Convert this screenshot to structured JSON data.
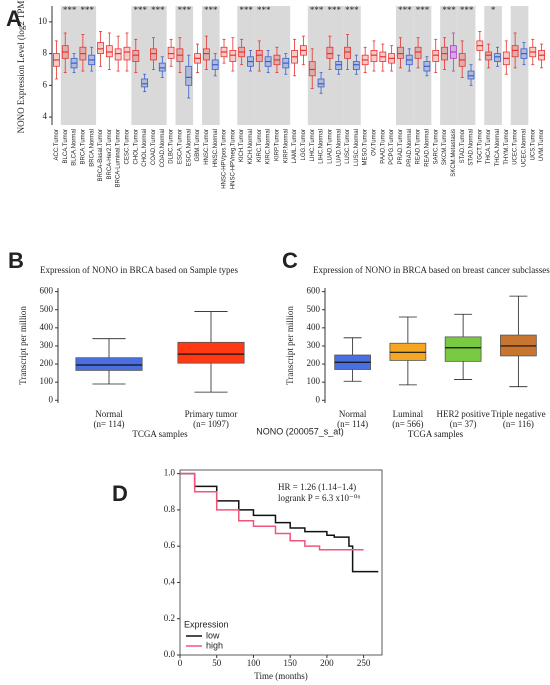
{
  "chart_data": [
    {
      "type": "box",
      "panel": "A",
      "y_label": "NONO Expression Level (log2 TPM)",
      "categories": [
        "ACC.Tumor",
        "BLCA.Tumor",
        "BLCA.Normal",
        "BRCA.Tumor",
        "BRCA.Normal",
        "BRCA-Basal.Tumor",
        "BRCA-Her2.Tumor",
        "BRCA-Luminal.Tumor",
        "CESC.Tumor",
        "CHOL.Tumor",
        "CHOL.Normal",
        "COAD.Tumor",
        "COAD.Normal",
        "DLBC.Tumor",
        "ESCA.Tumor",
        "ESCA.Normal",
        "GBM.Tumor",
        "HNSC.Tumor",
        "HNSC.Normal",
        "HNSC-HPVpos.Tumor",
        "HNSC-HPVneg.Tumor",
        "KICH.Tumor",
        "KICH.Normal",
        "KIRC.Tumor",
        "KIRC.Normal",
        "KIRP.Tumor",
        "KIRP.Normal",
        "LAML.Tumor",
        "LGG.Tumor",
        "LIHC.Tumor",
        "LIHC.Normal",
        "LUAD.Tumor",
        "LUAD.Normal",
        "LUSC.Tumor",
        "LUSC.Normal",
        "MESO.Tumor",
        "OV.Tumor",
        "PAAD.Tumor",
        "PCPG.Tumor",
        "PRAD.Tumor",
        "PRAD.Normal",
        "READ.Tumor",
        "READ.Normal",
        "SARC.Tumor",
        "SKCM.Tumor",
        "SKCM.Metastasis",
        "STAD.Tumor",
        "STAD.Normal",
        "TGCT.Tumor",
        "THCA.Tumor",
        "THCA.Normal",
        "THYM.Tumor",
        "UCEC.Tumor",
        "UCEC.Normal",
        "UCS.Tumor",
        "UVM.Tumor"
      ],
      "medians": [
        7.6,
        8.1,
        7.4,
        8.0,
        7.6,
        8.3,
        8.1,
        8.0,
        8.1,
        7.9,
        6.1,
        8.0,
        7.1,
        8.0,
        7.9,
        6.5,
        7.7,
        8.0,
        7.3,
        8.1,
        7.9,
        8.1,
        7.5,
        7.9,
        7.5,
        7.6,
        7.4,
        7.8,
        8.2,
        7.0,
        6.1,
        8.0,
        7.3,
        8.1,
        7.3,
        7.6,
        7.9,
        7.8,
        7.7,
        8.0,
        7.6,
        8.1,
        7.2,
        7.9,
        8.0,
        8.1,
        7.6,
        6.6,
        8.5,
        7.9,
        7.8,
        7.7,
        8.2,
        8.0,
        8.1,
        7.9
      ],
      "q1": [
        7.2,
        7.7,
        7.1,
        7.6,
        7.3,
        8.0,
        7.8,
        7.6,
        7.6,
        7.5,
        5.9,
        7.6,
        6.9,
        7.7,
        7.5,
        6.0,
        7.4,
        7.6,
        7.0,
        7.8,
        7.5,
        7.8,
        7.2,
        7.5,
        7.2,
        7.3,
        7.1,
        7.4,
        7.9,
        6.6,
        5.9,
        7.7,
        7.0,
        7.7,
        7.0,
        7.3,
        7.5,
        7.5,
        7.4,
        7.7,
        7.3,
        7.7,
        6.9,
        7.5,
        7.6,
        7.7,
        7.2,
        6.4,
        8.2,
        7.6,
        7.5,
        7.3,
        7.8,
        7.7,
        7.8,
        7.6
      ],
      "q3": [
        8.0,
        8.5,
        7.7,
        8.4,
        7.9,
        8.7,
        8.5,
        8.3,
        8.4,
        8.2,
        6.4,
        8.3,
        7.4,
        8.4,
        8.3,
        7.2,
        8.0,
        8.3,
        7.6,
        8.4,
        8.2,
        8.4,
        7.8,
        8.2,
        7.8,
        7.9,
        7.7,
        8.2,
        8.5,
        7.5,
        6.4,
        8.4,
        7.5,
        8.4,
        7.5,
        7.9,
        8.2,
        8.1,
        8.0,
        8.4,
        7.9,
        8.4,
        7.5,
        8.2,
        8.4,
        8.5,
        8.0,
        6.9,
        8.8,
        8.1,
        8.0,
        8.1,
        8.5,
        8.3,
        8.4,
        8.2
      ],
      "whisker_low": [
        6.4,
        6.8,
        6.8,
        6.9,
        6.9,
        7.2,
        7.0,
        6.9,
        6.9,
        6.8,
        5.6,
        7.0,
        6.5,
        7.2,
        6.8,
        5.2,
        6.8,
        7.0,
        6.6,
        7.4,
        6.9,
        7.3,
        6.9,
        6.9,
        6.8,
        6.8,
        6.7,
        6.6,
        7.3,
        5.8,
        5.5,
        7.0,
        6.7,
        7.0,
        6.7,
        6.8,
        6.9,
        6.9,
        6.9,
        7.1,
        6.9,
        7.1,
        6.6,
        6.8,
        7.0,
        6.9,
        6.5,
        6.0,
        7.6,
        7.1,
        7.2,
        6.7,
        7.1,
        7.3,
        7.3,
        7.1
      ],
      "whisker_high": [
        8.8,
        9.3,
        8.0,
        9.2,
        8.4,
        9.4,
        9.3,
        9.1,
        9.3,
        8.9,
        6.7,
        9.0,
        7.8,
        8.9,
        9.0,
        7.9,
        8.6,
        9.1,
        8.0,
        8.9,
        9.0,
        8.9,
        8.2,
        8.8,
        8.2,
        8.4,
        8.0,
        8.9,
        9.1,
        8.3,
        6.8,
        9.1,
        7.9,
        9.2,
        7.9,
        8.4,
        8.8,
        8.6,
        8.5,
        9.0,
        8.3,
        9.0,
        7.8,
        8.9,
        9.0,
        9.3,
        8.8,
        7.3,
        9.4,
        8.6,
        8.4,
        8.8,
        9.3,
        8.7,
        8.9,
        8.6
      ],
      "significance": [
        null,
        "***",
        null,
        "***",
        null,
        null,
        null,
        null,
        null,
        "***",
        null,
        "***",
        null,
        null,
        "***",
        null,
        null,
        "***",
        null,
        null,
        null,
        "***",
        null,
        "***",
        null,
        null,
        null,
        null,
        null,
        "***",
        null,
        "***",
        null,
        "***",
        null,
        null,
        null,
        null,
        null,
        "***",
        null,
        "***",
        null,
        null,
        "***",
        null,
        "***",
        null,
        null,
        "*",
        null,
        null,
        null,
        null,
        null,
        null
      ],
      "box_colors": {
        "Tumor": "#e8322e",
        "Normal": "#3a5fd0",
        "Metastasis": "#b43ad0"
      },
      "ylim": [
        3.5,
        11
      ],
      "yticks": [
        4,
        6,
        8,
        10
      ]
    },
    {
      "type": "box",
      "panel": "B",
      "title": "Expression of NONO in BRCA based on Sample types",
      "y_label": "Transcript per million",
      "x_label": "TCGA samples",
      "categories": [
        "Normal",
        "Primary tumor"
      ],
      "n_labels": [
        "(n= 114)",
        "(n= 1097)"
      ],
      "medians": [
        195,
        255
      ],
      "q1": [
        165,
        205
      ],
      "q3": [
        235,
        320
      ],
      "whisker_low": [
        90,
        45
      ],
      "whisker_high": [
        340,
        490
      ],
      "colors": [
        "#4a6fe3",
        "#ff3a12"
      ],
      "ylim": [
        -15,
        620
      ],
      "yticks": [
        0,
        100,
        200,
        300,
        400,
        500,
        600
      ]
    },
    {
      "type": "box",
      "panel": "C",
      "title": "Expression of NONO in BRCA based on breast cancer subclasses",
      "y_label": "Transcript per million",
      "x_label": "TCGA samples",
      "categories": [
        "Normal",
        "Luminal",
        "HER2 positive",
        "Triple negative"
      ],
      "n_labels": [
        "(n= 114)",
        "(n= 566)",
        "(n= 37)",
        "(n= 116)"
      ],
      "medians": [
        210,
        265,
        290,
        300
      ],
      "q1": [
        170,
        220,
        215,
        245
      ],
      "q3": [
        250,
        315,
        350,
        360
      ],
      "whisker_low": [
        105,
        85,
        115,
        75
      ],
      "whisker_high": [
        345,
        460,
        475,
        575
      ],
      "colors": [
        "#4a6fe3",
        "#f5a623",
        "#7ac943",
        "#c87530"
      ],
      "ylim": [
        -15,
        620
      ],
      "yticks": [
        0,
        100,
        200,
        300,
        400,
        500,
        600
      ]
    },
    {
      "type": "line",
      "panel": "D",
      "title": "NONO (200057_s_at)",
      "annotations": [
        "HR = 1.26 (1.14−1.4)",
        "logrank P = 6.3 x10⁻⁰⁶"
      ],
      "x_label": "Time (months)",
      "legend_title": "Expression",
      "step": true,
      "series": [
        {
          "name": "low",
          "color": "#111111",
          "x": [
            0,
            20,
            50,
            80,
            100,
            130,
            150,
            170,
            200,
            210,
            230,
            235,
            270
          ],
          "values": [
            1,
            0.93,
            0.85,
            0.8,
            0.77,
            0.73,
            0.7,
            0.68,
            0.66,
            0.65,
            0.6,
            0.46,
            0.46
          ]
        },
        {
          "name": "high",
          "color": "#f2557a",
          "x": [
            0,
            20,
            50,
            80,
            100,
            130,
            150,
            170,
            190,
            250
          ],
          "values": [
            1,
            0.9,
            0.8,
            0.74,
            0.71,
            0.67,
            0.63,
            0.6,
            0.58,
            0.58
          ]
        }
      ],
      "xlim": [
        0,
        275
      ],
      "xticks": [
        0,
        50,
        100,
        150,
        200,
        250
      ],
      "ylim": [
        0,
        1.02
      ],
      "yticks": [
        {
          "value": 0,
          "label": "0.0"
        },
        0.2,
        0.4,
        0.6,
        0.8,
        {
          "value": 1,
          "label": "1.0"
        }
      ]
    }
  ]
}
